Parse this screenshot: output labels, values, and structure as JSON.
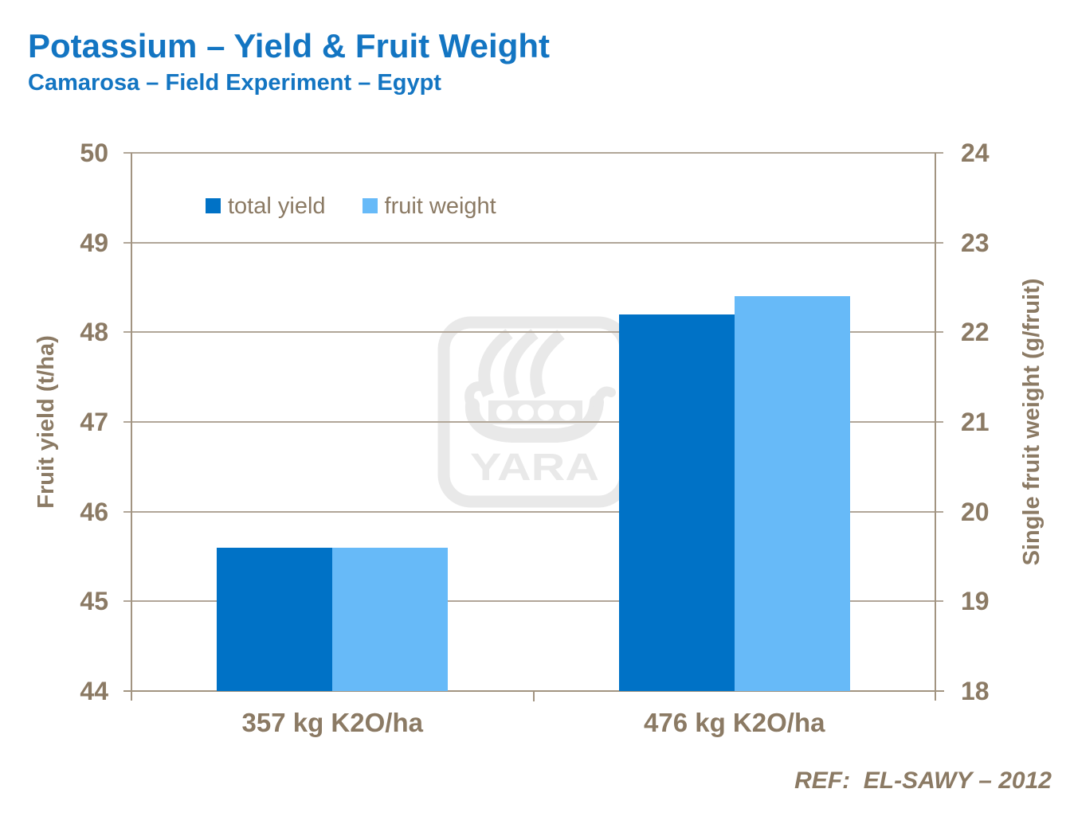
{
  "header": {
    "title": "Potassium – Yield & Fruit Weight",
    "subtitle": "Camarosa – Field Experiment – Egypt"
  },
  "footer": {
    "reference": "REF:  EL-SAWY – 2012"
  },
  "watermark": {
    "text": "YARA"
  },
  "colors": {
    "title-blue": "#1375C2",
    "series-dark": "#0072C6",
    "series-light": "#67BAF8",
    "axis-text": "#8B7A64",
    "grid-line": "#B1A698",
    "axis-line": "#A29481",
    "watermark-gray": "#E9E9E9"
  },
  "chart_data": {
    "type": "bar",
    "categories": [
      "357 kg K2O/ha",
      "476 kg K2O/ha"
    ],
    "series": [
      {
        "name": "total yield",
        "axis": "left",
        "color": "#0072C6",
        "values": [
          45.6,
          48.2
        ]
      },
      {
        "name": "fruit weight",
        "axis": "right",
        "color": "#67BAF8",
        "values": [
          19.6,
          22.4
        ]
      }
    ],
    "left_axis": {
      "label": "Fruit yield (t/ha)",
      "min": 44,
      "max": 50,
      "tick_step": 1,
      "ticks": [
        44,
        45,
        46,
        47,
        48,
        49,
        50
      ]
    },
    "right_axis": {
      "label": "Single fruit weight (g/fruit)",
      "min": 18,
      "max": 24,
      "tick_step": 1,
      "ticks": [
        18,
        19,
        20,
        21,
        22,
        23,
        24
      ]
    },
    "grid": true,
    "legend_position": "top-inside"
  }
}
